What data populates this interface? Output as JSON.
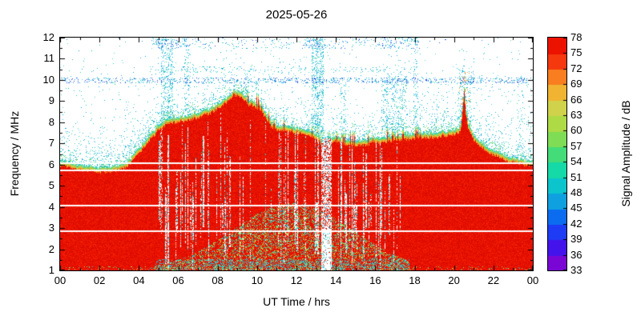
{
  "chart_data": {
    "type": "heatmap",
    "title": "2025-05-26",
    "xlabel": "UT Time / hrs",
    "ylabel": "Frequency / MHz",
    "colorbar_label": "Signal Amplitude / dB",
    "x_range": [
      0,
      24
    ],
    "y_range": [
      1,
      12
    ],
    "x_major_step": 2,
    "x_minor_step": 1,
    "y_major_step": 1,
    "y_minor_step": 0.5,
    "x_tick_labels": [
      "00",
      "02",
      "04",
      "06",
      "08",
      "10",
      "12",
      "14",
      "16",
      "18",
      "20",
      "22",
      "00"
    ],
    "y_tick_labels": [
      1,
      2,
      3,
      4,
      5,
      6,
      7,
      8,
      9,
      10,
      11,
      12
    ],
    "colorbar_ticks": [
      33,
      36,
      39,
      42,
      45,
      48,
      51,
      54,
      57,
      60,
      63,
      66,
      69,
      72,
      75,
      78
    ],
    "colorbar_colors_low_to_high": [
      "#7a06d6",
      "#4413ec",
      "#1f3cf5",
      "#0b6cf0",
      "#0fa0e0",
      "#0cc4cc",
      "#15d9a6",
      "#43dc78",
      "#7edc55",
      "#aeda45",
      "#cfd24a",
      "#f0b432",
      "#f87e20",
      "#f5380e",
      "#ec1200"
    ],
    "background": "#ffffff",
    "envelope_points": [
      [
        0,
        6.2
      ],
      [
        0.5,
        6.1
      ],
      [
        1,
        6.0
      ],
      [
        1.5,
        5.95
      ],
      [
        2,
        5.9
      ],
      [
        2.5,
        5.9
      ],
      [
        3,
        6.0
      ],
      [
        3.5,
        6.25
      ],
      [
        4,
        6.8
      ],
      [
        4.5,
        7.4
      ],
      [
        5,
        7.9
      ],
      [
        5.5,
        8.2
      ],
      [
        6,
        8.3
      ],
      [
        6.5,
        8.35
      ],
      [
        7,
        8.5
      ],
      [
        7.5,
        8.65
      ],
      [
        8,
        8.9
      ],
      [
        8.5,
        9.25
      ],
      [
        8.8,
        9.55
      ],
      [
        9,
        9.5
      ],
      [
        9.3,
        9.35
      ],
      [
        9.6,
        9.05
      ],
      [
        10,
        8.95
      ],
      [
        10.4,
        8.5
      ],
      [
        10.7,
        8.05
      ],
      [
        11,
        7.9
      ],
      [
        11.5,
        7.8
      ],
      [
        12,
        7.75
      ],
      [
        12.5,
        7.65
      ],
      [
        13,
        7.5
      ],
      [
        13.3,
        7.15
      ],
      [
        13.6,
        7.3
      ],
      [
        14,
        7.35
      ],
      [
        14.5,
        7.2
      ],
      [
        15,
        7.15
      ],
      [
        15.5,
        7.2
      ],
      [
        16,
        7.3
      ],
      [
        16.5,
        7.35
      ],
      [
        17,
        7.4
      ],
      [
        17.5,
        7.45
      ],
      [
        18,
        7.5
      ],
      [
        18.5,
        7.5
      ],
      [
        19,
        7.55
      ],
      [
        19.5,
        7.6
      ],
      [
        20,
        7.7
      ],
      [
        20.3,
        7.8
      ],
      [
        20.42,
        8.7
      ],
      [
        20.5,
        9.65
      ],
      [
        20.58,
        8.7
      ],
      [
        20.7,
        7.9
      ],
      [
        21,
        7.4
      ],
      [
        21.5,
        7.0
      ],
      [
        22,
        6.7
      ],
      [
        22.5,
        6.5
      ],
      [
        23,
        6.35
      ],
      [
        23.5,
        6.25
      ],
      [
        24,
        6.2
      ]
    ],
    "white_line_freqs_mhz": [
      6.05,
      5.72,
      4.08,
      2.84
    ],
    "quiet_gap_hours": [
      13.25,
      13.75
    ],
    "sporadic_spike": {
      "hour": 20.5,
      "peak_mhz": 9.65
    },
    "speckle_bands_mhz": [
      [
        9.85,
        10.12
      ],
      [
        10.35,
        10.65
      ],
      [
        11.5,
        12.0
      ]
    ],
    "daytime_mottle_hours": [
      4.8,
      17.7
    ]
  }
}
